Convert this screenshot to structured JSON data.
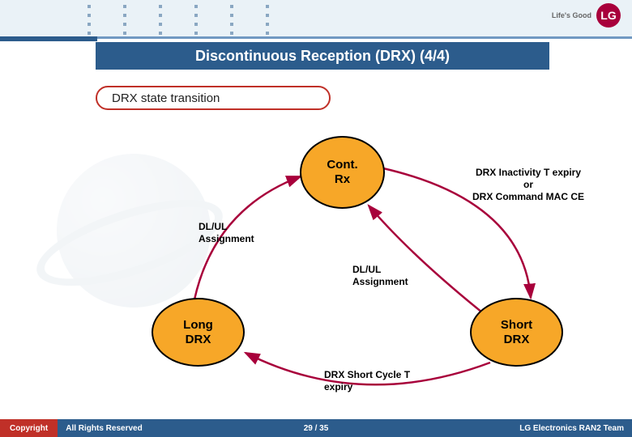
{
  "header": {
    "logo_text": "Life's Good",
    "logo_mark": "LG"
  },
  "title": "Discontinuous Reception (DRX) (4/4)",
  "subtitle": "DRX state transition",
  "diagram": {
    "type": "state-diagram",
    "background_color": "#ffffff",
    "node_fill": "#f7a728",
    "node_border": "#000000",
    "arrow_color": "#a8003b",
    "nodes": {
      "cont": "Cont.\nRx",
      "long": "Long\nDRX",
      "short": "Short\nDRX"
    },
    "edges": {
      "dlul_left": "DL/UL\nAssignment",
      "dlul_mid": "DL/UL\nAssignment",
      "inactivity": "DRX Inactivity T expiry\nor\nDRX Command MAC CE",
      "short_expiry": "DRX Short Cycle T\nexpiry"
    }
  },
  "footer": {
    "copyright": "Copyright",
    "rights": "All Rights Reserved",
    "page": "29 / 35",
    "team": "LG Electronics RAN2 Team"
  }
}
